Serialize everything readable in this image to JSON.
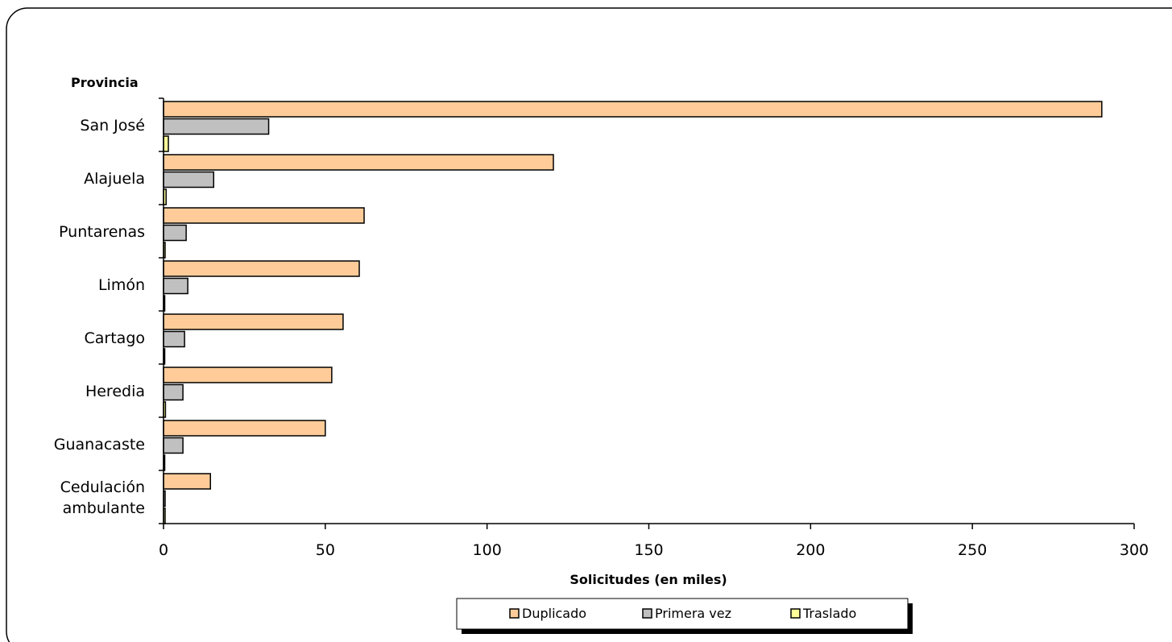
{
  "chart_data": {
    "type": "bar",
    "orientation": "horizontal",
    "categories": [
      "San José",
      "Alajuela",
      "Puntarenas",
      "Limón",
      "Cartago",
      "Heredia",
      "Guanacaste",
      "Cedulación ambulante"
    ],
    "category_lines": [
      [
        "San José"
      ],
      [
        "Alajuela"
      ],
      [
        "Puntarenas"
      ],
      [
        "Limón"
      ],
      [
        "Cartago"
      ],
      [
        "Heredia"
      ],
      [
        "Guanacaste"
      ],
      [
        "Cedulación",
        "ambulante"
      ]
    ],
    "series": [
      {
        "name": "Duplicado",
        "color": "#FFCC99",
        "values": [
          290,
          120.5,
          62,
          60.5,
          55.5,
          52,
          50,
          14.5
        ]
      },
      {
        "name": "Primera vez",
        "color": "#C0C0C0",
        "values": [
          32.5,
          15.5,
          7,
          7.5,
          6.5,
          6,
          6,
          0.5
        ]
      },
      {
        "name": "Traslado",
        "color": "#FFFF99",
        "values": [
          1.5,
          0.8,
          0.5,
          0.3,
          0.3,
          0.6,
          0.3,
          0.5
        ]
      }
    ],
    "xlim": [
      0,
      300
    ],
    "xticks": [
      0,
      50,
      100,
      150,
      200,
      250,
      300
    ],
    "xlabel": "Solicitudes (en miles)",
    "ylabel": "Provincia",
    "grid": false,
    "legend_position": "bottom"
  }
}
